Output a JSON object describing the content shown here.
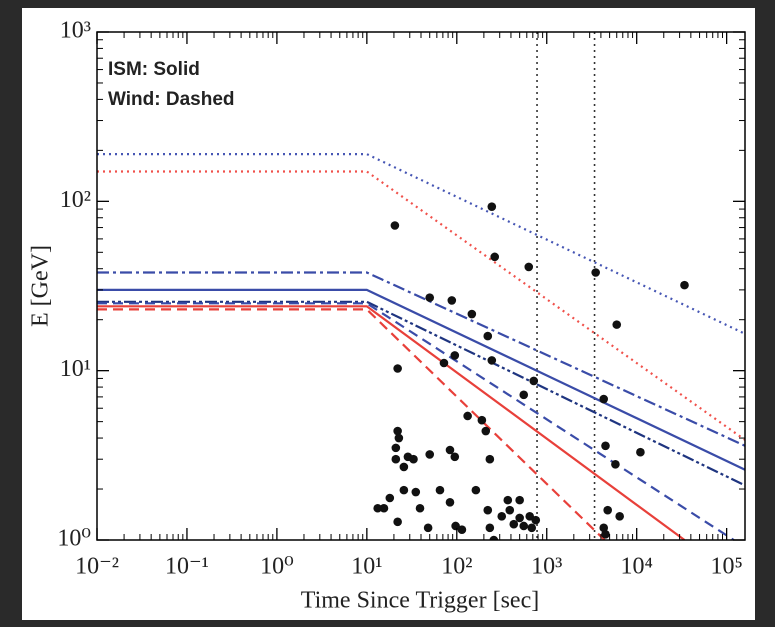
{
  "chart_data": {
    "type": "scatter",
    "xlabel": "Time Since Trigger [sec]",
    "ylabel": "E [GeV]",
    "annotations": [
      "ISM: Solid",
      "Wind: Dashed"
    ],
    "xscale": "log",
    "yscale": "log",
    "xlim": [
      0.01,
      160000
    ],
    "ylim": [
      1,
      1000
    ],
    "xticks": [
      {
        "value": 0.01,
        "label": "10⁻²"
      },
      {
        "value": 0.1,
        "label": "10⁻¹"
      },
      {
        "value": 1,
        "label": "10⁰"
      },
      {
        "value": 10,
        "label": "10¹"
      },
      {
        "value": 100,
        "label": "10²"
      },
      {
        "value": 1000,
        "label": "10³"
      },
      {
        "value": 10000,
        "label": "10⁴"
      },
      {
        "value": 100000,
        "label": "10⁵"
      }
    ],
    "yticks": [
      {
        "value": 1,
        "label": "10⁰"
      },
      {
        "value": 10,
        "label": "10¹"
      },
      {
        "value": 100,
        "label": "10²"
      },
      {
        "value": 1000,
        "label": "10³"
      }
    ],
    "vlines": [
      780,
      3400
    ],
    "vline_color": "#333333",
    "point_color": "#111111",
    "series": [
      {
        "color": "#4656b4",
        "dash": "dotted",
        "x": [
          0.01,
          10,
          160000
        ],
        "y": [
          190,
          190,
          16.5
        ]
      },
      {
        "color": "#f0514b",
        "dash": "dotted",
        "x": [
          0.01,
          10,
          160000
        ],
        "y": [
          150,
          150,
          3.9
        ]
      },
      {
        "color": "#3a4ca8",
        "dash": "dashdot",
        "x": [
          0.01,
          10,
          160000
        ],
        "y": [
          38,
          38,
          3.6
        ]
      },
      {
        "color": "#3a4ca8",
        "dash": "solid",
        "x": [
          0.01,
          10,
          160000
        ],
        "y": [
          30,
          30,
          2.6
        ]
      },
      {
        "color": "#1f3580",
        "dash": "dashdotdot",
        "x": [
          0.01,
          10,
          160000
        ],
        "y": [
          25.5,
          25.5,
          2.1
        ]
      },
      {
        "color": "#3a4ca8",
        "dash": "dashed",
        "x": [
          0.01,
          10,
          120000
        ],
        "y": [
          25,
          25,
          1
        ]
      },
      {
        "color": "#e8403a",
        "dash": "solid",
        "x": [
          0.01,
          10,
          34000
        ],
        "y": [
          24,
          24,
          1
        ]
      },
      {
        "color": "#e8403a",
        "dash": "dashed",
        "x": [
          0.01,
          10,
          4400
        ],
        "y": [
          23,
          23,
          1
        ]
      }
    ],
    "points": {
      "x": [
        20.5,
        245,
        264,
        631,
        3500,
        34000,
        6000,
        50,
        88,
        147,
        221,
        22,
        95,
        245,
        72,
        717,
        555,
        4300,
        4500,
        5800,
        11000,
        22,
        22.7,
        21,
        21,
        25.8,
        28.6,
        33,
        50,
        84,
        95,
        132,
        190,
        210,
        233,
        25.8,
        35,
        65,
        15.5,
        13.2,
        18,
        22,
        39,
        48,
        84,
        97,
        114,
        163,
        221,
        233,
        258,
        316,
        369,
        388,
        430,
        500,
        500,
        555,
        647,
        681,
        755,
        4760,
        4300,
        6470,
        4500
      ],
      "y": [
        72,
        93,
        47,
        41,
        38,
        32,
        18.7,
        27,
        26,
        21.6,
        16,
        10.3,
        12.3,
        11.5,
        11.1,
        8.7,
        7.2,
        6.8,
        3.6,
        2.8,
        3.3,
        4.4,
        4.0,
        3.5,
        3.0,
        2.7,
        3.1,
        3.0,
        3.2,
        3.4,
        3.1,
        5.4,
        5.1,
        4.4,
        3.0,
        1.97,
        1.92,
        1.97,
        1.54,
        1.54,
        1.77,
        1.28,
        1.54,
        1.18,
        1.67,
        1.21,
        1.15,
        1.97,
        1.5,
        1.18,
        1.0,
        1.38,
        1.72,
        1.5,
        1.24,
        1.72,
        1.35,
        1.21,
        1.38,
        1.18,
        1.31,
        1.5,
        1.18,
        1.38,
        1.08
      ]
    }
  }
}
